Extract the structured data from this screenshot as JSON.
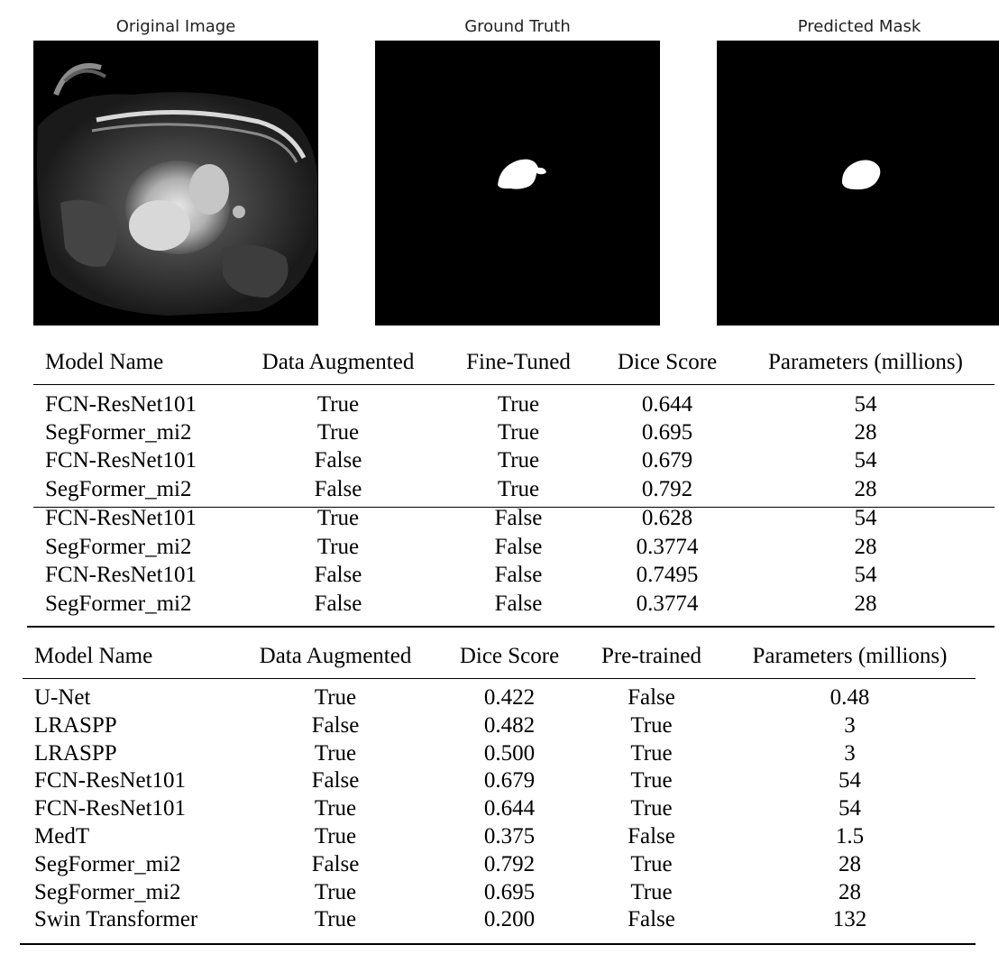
{
  "panels": {
    "original_title": "Original Image",
    "ground_truth_title": "Ground Truth",
    "predicted_title": "Predicted Mask"
  },
  "table1": {
    "headers": [
      "Model Name",
      "Data Augmented",
      "Fine-Tuned",
      "Dice Score",
      "Parameters (millions)"
    ],
    "rows": [
      [
        "FCN-ResNet101",
        "True",
        "True",
        "0.644",
        "54"
      ],
      [
        "SegFormer_mi2",
        "True",
        "True",
        "0.695",
        "28"
      ],
      [
        "FCN-ResNet101",
        "False",
        "True",
        "0.679",
        "54"
      ],
      [
        "SegFormer_mi2",
        "False",
        "True",
        "0.792",
        "28"
      ],
      [
        "FCN-ResNet101",
        "True",
        "False",
        "0.628",
        "54"
      ],
      [
        "SegFormer_mi2",
        "True",
        "False",
        "0.3774",
        "28"
      ],
      [
        "FCN-ResNet101",
        "False",
        "False",
        "0.7495",
        "54"
      ],
      [
        "SegFormer_mi2",
        "False",
        "False",
        "0.3774",
        "28"
      ]
    ]
  },
  "table2": {
    "headers": [
      "Model Name",
      "Data Augmented",
      "Dice Score",
      "Pre-trained",
      "Parameters (millions)"
    ],
    "rows": [
      [
        "U-Net",
        "True",
        "0.422",
        "False",
        "0.48"
      ],
      [
        "LRASPP",
        "False",
        "0.482",
        "True",
        "3"
      ],
      [
        "LRASPP",
        "True",
        "0.500",
        "True",
        "3"
      ],
      [
        "FCN-ResNet101",
        "False",
        "0.679",
        "True",
        "54"
      ],
      [
        "FCN-ResNet101",
        "True",
        "0.644",
        "True",
        "54"
      ],
      [
        "MedT",
        "True",
        "0.375",
        "False",
        "1.5"
      ],
      [
        "SegFormer_mi2",
        "False",
        "0.792",
        "True",
        "28"
      ],
      [
        "SegFormer_mi2",
        "True",
        "0.695",
        "True",
        "28"
      ],
      [
        "Swin Transformer",
        "True",
        "0.200",
        "False",
        "132"
      ]
    ]
  }
}
